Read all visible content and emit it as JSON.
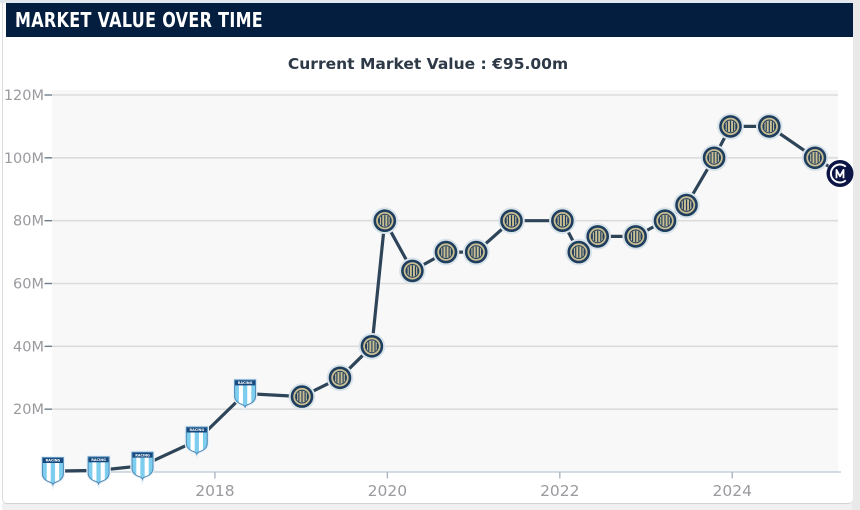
{
  "header": {
    "title": "MARKET VALUE OVER TIME"
  },
  "subtitle": {
    "label": "Current Market Value",
    "value": "€95.00m",
    "text": "Current Market Value : €95.00m"
  },
  "icons": {
    "racing_banner_text": "RACING",
    "racing_crest": "racing-club-crest",
    "inter_crest": "inter-milan-crest",
    "inter_current_crest": "inter-milan-current-crest"
  },
  "colors": {
    "header_bg": "#041e3f",
    "header_text": "#ffffff",
    "subtitle_text": "#2e3948",
    "plot_bg": "#f8f8f8",
    "gridline": "#dcdcdc",
    "axis_line": "#c6cfd9",
    "y_tick": "#6f7c88",
    "x_tick": "#aeb6c0",
    "tick_label": "#9a9a9f",
    "line": "#2e4459",
    "racing_blue": "#7dcdef",
    "racing_band": "#17497e",
    "inter_gold": "#cabe93",
    "inter_navy": "#1f3e5e",
    "inter_new_navy": "#0b1444",
    "marker_halo": "#d8e3ea"
  },
  "chart_data": {
    "type": "line",
    "title": "MARKET VALUE OVER TIME",
    "subtitle": "Current Market Value : €95.00m",
    "unit": "€ million",
    "grid": "horizontal",
    "legend": "none",
    "x_axis": {
      "min": 2016.11,
      "max": 2025.25,
      "ticks": [
        2018,
        2020,
        2022,
        2024
      ],
      "tick_labels": [
        "2018",
        "2020",
        "2022",
        "2024"
      ]
    },
    "y_axis": {
      "min": 0,
      "max": 120,
      "tick_values": [
        20,
        40,
        60,
        80,
        100,
        120
      ],
      "tick_labels": [
        "20M",
        "40M",
        "60M",
        "80M",
        "100M",
        "120M"
      ]
    },
    "series": [
      {
        "name": "Market value",
        "color": "#2e4459",
        "points": [
          {
            "x": 2016.12,
            "y": 0.3,
            "icon": "racing-crest"
          },
          {
            "x": 2016.65,
            "y": 0.5,
            "icon": "racing-crest"
          },
          {
            "x": 2017.16,
            "y": 2,
            "icon": "racing-crest"
          },
          {
            "x": 2017.79,
            "y": 10,
            "icon": "racing-crest"
          },
          {
            "x": 2018.35,
            "y": 25,
            "icon": "racing-crest"
          },
          {
            "x": 2019.01,
            "y": 24,
            "icon": "inter-crest"
          },
          {
            "x": 2019.45,
            "y": 30,
            "icon": "inter-crest"
          },
          {
            "x": 2019.82,
            "y": 40,
            "icon": "inter-crest"
          },
          {
            "x": 2019.97,
            "y": 80,
            "icon": "inter-crest"
          },
          {
            "x": 2020.29,
            "y": 64,
            "icon": "inter-crest"
          },
          {
            "x": 2020.68,
            "y": 70,
            "icon": "inter-crest"
          },
          {
            "x": 2021.03,
            "y": 70,
            "icon": "inter-crest"
          },
          {
            "x": 2021.44,
            "y": 80,
            "icon": "inter-crest"
          },
          {
            "x": 2022.03,
            "y": 80,
            "icon": "inter-crest"
          },
          {
            "x": 2022.22,
            "y": 70,
            "icon": "inter-crest"
          },
          {
            "x": 2022.44,
            "y": 75,
            "icon": "inter-crest"
          },
          {
            "x": 2022.88,
            "y": 75,
            "icon": "inter-crest"
          },
          {
            "x": 2023.22,
            "y": 80,
            "icon": "inter-crest"
          },
          {
            "x": 2023.47,
            "y": 85,
            "icon": "inter-crest"
          },
          {
            "x": 2023.79,
            "y": 100,
            "icon": "inter-crest"
          },
          {
            "x": 2023.98,
            "y": 110,
            "icon": "inter-crest"
          },
          {
            "x": 2024.43,
            "y": 110,
            "icon": "inter-crest"
          },
          {
            "x": 2024.96,
            "y": 100,
            "icon": "inter-crest"
          },
          {
            "x": 2025.25,
            "y": 95,
            "icon": "inter-current-crest"
          }
        ]
      }
    ],
    "current_value_eur_m": 95.0
  }
}
